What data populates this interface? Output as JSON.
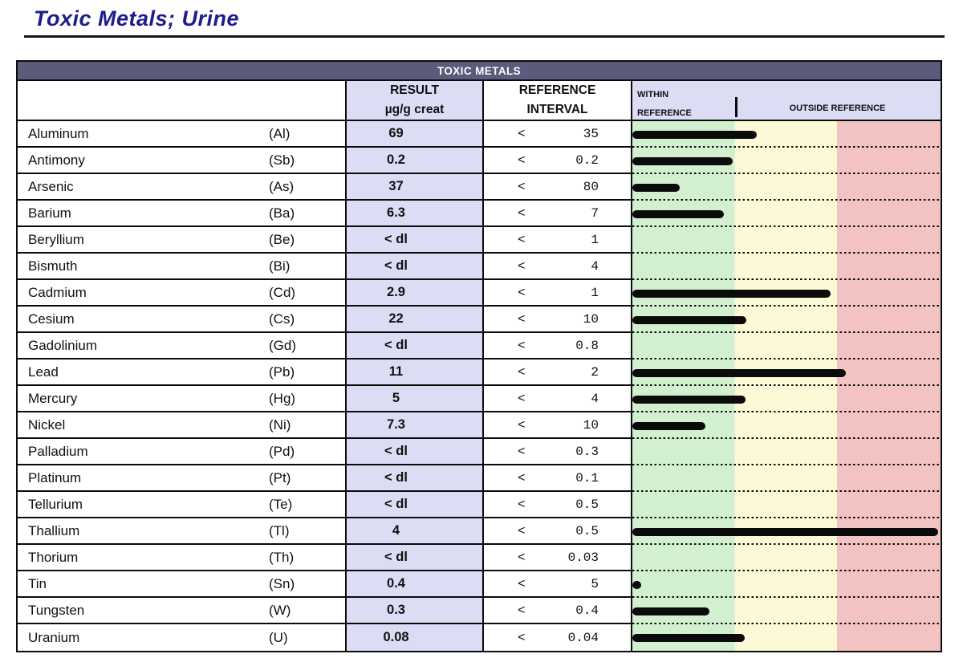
{
  "title": "Toxic Metals; Urine",
  "table": {
    "banner": "TOXIC METALS",
    "headers": {
      "result_line1": "RESULT",
      "result_line2": "µg/g creat",
      "reference_line1": "REFERENCE",
      "reference_line2": "INTERVAL",
      "within_line1": "WITHIN",
      "within_line2": "REFERENCE",
      "outside": "OUTSIDE REFERENCE"
    },
    "rows": [
      {
        "name": "Aluminum",
        "symbol": "(Al)",
        "result": "69",
        "ref_op": "<",
        "ref_value": "35",
        "bar_pct": 40.4
      },
      {
        "name": "Antimony",
        "symbol": "(Sb)",
        "result": "0.2",
        "ref_op": "<",
        "ref_value": "0.2",
        "bar_pct": 32.6
      },
      {
        "name": "Arsenic",
        "symbol": "(As)",
        "result": "37",
        "ref_op": "<",
        "ref_value": "80",
        "bar_pct": 15.3
      },
      {
        "name": "Barium",
        "symbol": "(Ba)",
        "result": "6.3",
        "ref_op": "<",
        "ref_value": "7",
        "bar_pct": 29.8
      },
      {
        "name": "Beryllium",
        "symbol": "(Be)",
        "result": "< dl",
        "ref_op": "<",
        "ref_value": "1",
        "bar_pct": 0
      },
      {
        "name": "Bismuth",
        "symbol": "(Bi)",
        "result": "< dl",
        "ref_op": "<",
        "ref_value": "4",
        "bar_pct": 0
      },
      {
        "name": "Cadmium",
        "symbol": "(Cd)",
        "result": "2.9",
        "ref_op": "<",
        "ref_value": "1",
        "bar_pct": 64.2
      },
      {
        "name": "Cesium",
        "symbol": "(Cs)",
        "result": "22",
        "ref_op": "<",
        "ref_value": "10",
        "bar_pct": 37.0
      },
      {
        "name": "Gadolinium",
        "symbol": "(Gd)",
        "result": "< dl",
        "ref_op": "<",
        "ref_value": "0.8",
        "bar_pct": 0
      },
      {
        "name": "Lead",
        "symbol": "(Pb)",
        "result": "11",
        "ref_op": "<",
        "ref_value": "2",
        "bar_pct": 69.2
      },
      {
        "name": "Mercury",
        "symbol": "(Hg)",
        "result": "5",
        "ref_op": "<",
        "ref_value": "4",
        "bar_pct": 36.8
      },
      {
        "name": "Nickel",
        "symbol": "(Ni)",
        "result": "7.3",
        "ref_op": "<",
        "ref_value": "10",
        "bar_pct": 23.8
      },
      {
        "name": "Palladium",
        "symbol": "(Pd)",
        "result": "< dl",
        "ref_op": "<",
        "ref_value": "0.3",
        "bar_pct": 0
      },
      {
        "name": "Platinum",
        "symbol": "(Pt)",
        "result": "< dl",
        "ref_op": "<",
        "ref_value": "0.1",
        "bar_pct": 0
      },
      {
        "name": "Tellurium",
        "symbol": "(Te)",
        "result": "< dl",
        "ref_op": "<",
        "ref_value": "0.5",
        "bar_pct": 0
      },
      {
        "name": "Thallium",
        "symbol": "(Tl)",
        "result": "4",
        "ref_op": "<",
        "ref_value": "0.5",
        "bar_pct": 99.2
      },
      {
        "name": "Thorium",
        "symbol": "(Th)",
        "result": "< dl",
        "ref_op": "<",
        "ref_value": "0.03",
        "bar_pct": 0
      },
      {
        "name": "Tin",
        "symbol": "(Sn)",
        "result": "0.4",
        "ref_op": "<",
        "ref_value": "5",
        "bar_pct": 2.8
      },
      {
        "name": "Tungsten",
        "symbol": "(W)",
        "result": "0.3",
        "ref_op": "<",
        "ref_value": "0.4",
        "bar_pct": 24.9
      },
      {
        "name": "Uranium",
        "symbol": "(U)",
        "result": "0.08",
        "ref_op": "<",
        "ref_value": "0.04",
        "bar_pct": 36.5
      }
    ]
  },
  "colors": {
    "title_text": "#1c1c8f",
    "banner_bg": "#5b5b7c",
    "panel_bg": "#dddcf5",
    "zone_within": "#d2f0d0",
    "zone_middle": "#fcfad6",
    "zone_outside": "#f2c3c2",
    "bar": "#0b0b0b"
  },
  "chart_data": {
    "type": "bar",
    "orientation": "horizontal",
    "categories": [
      "Al",
      "Sb",
      "As",
      "Ba",
      "Be",
      "Bi",
      "Cd",
      "Cs",
      "Gd",
      "Pb",
      "Hg",
      "Ni",
      "Pd",
      "Pt",
      "Te",
      "Tl",
      "Th",
      "Sn",
      "W",
      "U"
    ],
    "values_pct_of_scale": [
      40.4,
      32.6,
      15.3,
      29.8,
      0,
      0,
      64.2,
      37.0,
      0,
      69.2,
      36.8,
      23.8,
      0,
      0,
      0,
      99.2,
      0,
      2.8,
      24.9,
      36.5
    ],
    "zones": [
      {
        "color": "#d2f0d0",
        "end_pct": 33.2
      },
      {
        "color": "#fcfad6",
        "end_pct": 66.4
      },
      {
        "color": "#f2c3c2",
        "end_pct": 100
      }
    ],
    "zone_labels": [
      "WITHIN REFERENCE",
      "OUTSIDE REFERENCE"
    ],
    "grid": "dotted row separators"
  }
}
